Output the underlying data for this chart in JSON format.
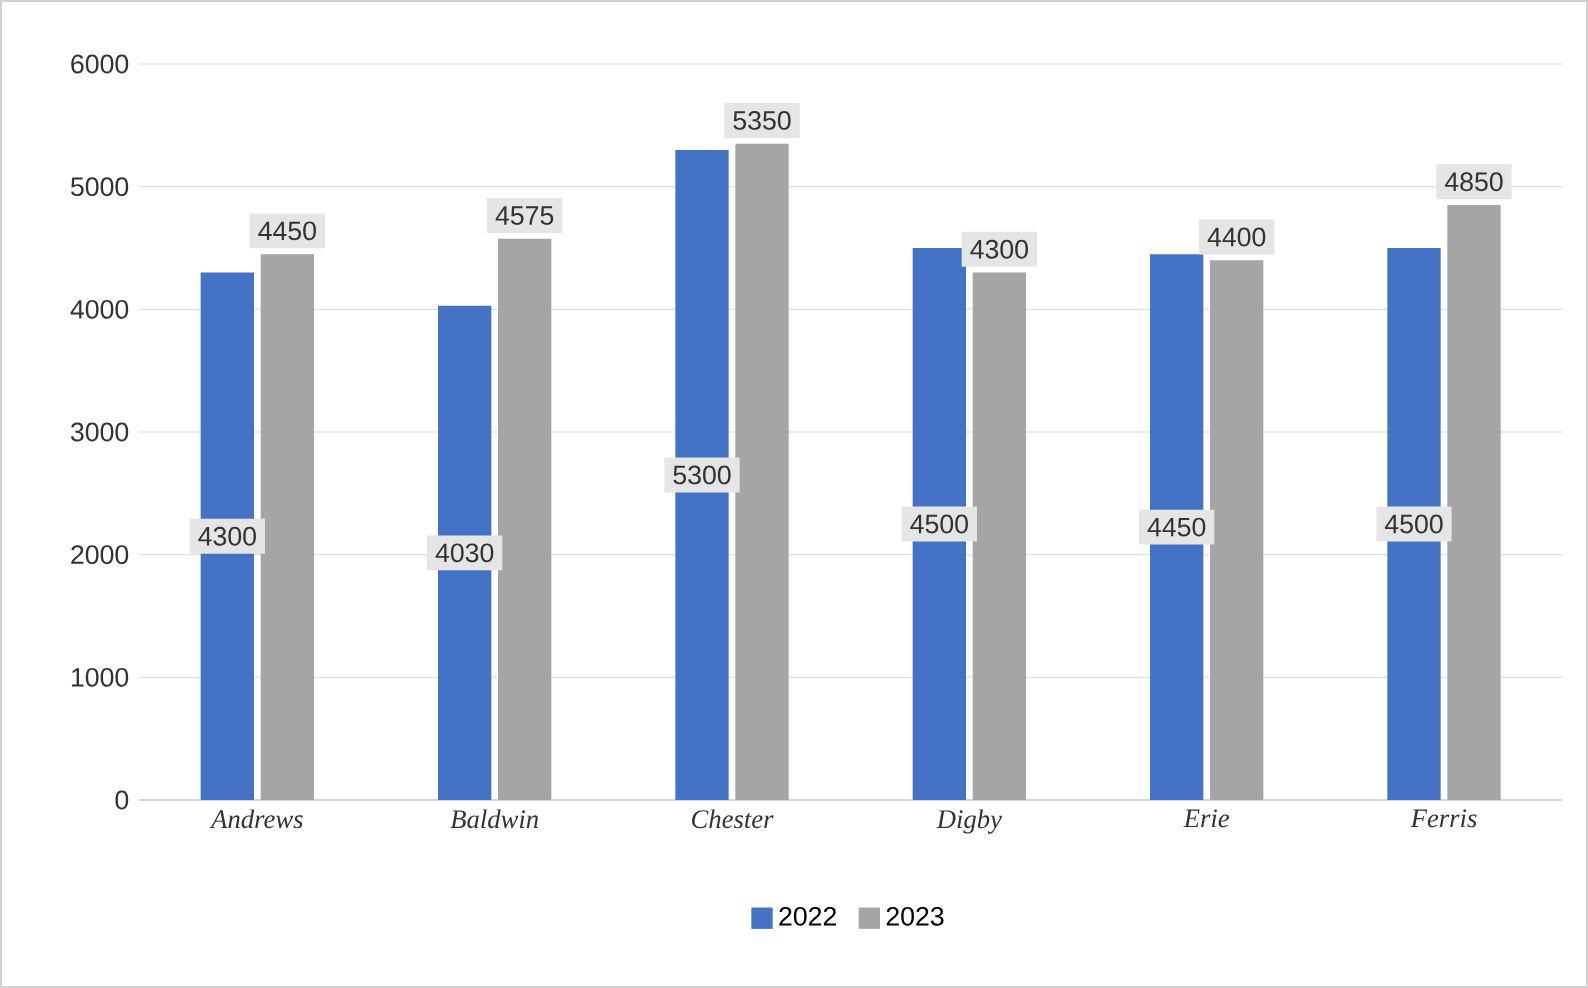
{
  "chart_data": {
    "type": "bar",
    "categories": [
      "Andrews",
      "Baldwin",
      "Chester",
      "Digby",
      "Erie",
      "Ferris"
    ],
    "series": [
      {
        "name": "2022",
        "color": "#4472c4",
        "values": [
          4300,
          4030,
          5300,
          4500,
          4450,
          4500
        ]
      },
      {
        "name": "2023",
        "color": "#a5a5a5",
        "values": [
          4450,
          4575,
          5350,
          4300,
          4400,
          4850
        ]
      }
    ],
    "ylim": [
      0,
      6000
    ],
    "yticks": [
      0,
      1000,
      2000,
      3000,
      4000,
      5000,
      6000
    ],
    "grid": "y",
    "legend": "bottom",
    "data_labels": true
  }
}
